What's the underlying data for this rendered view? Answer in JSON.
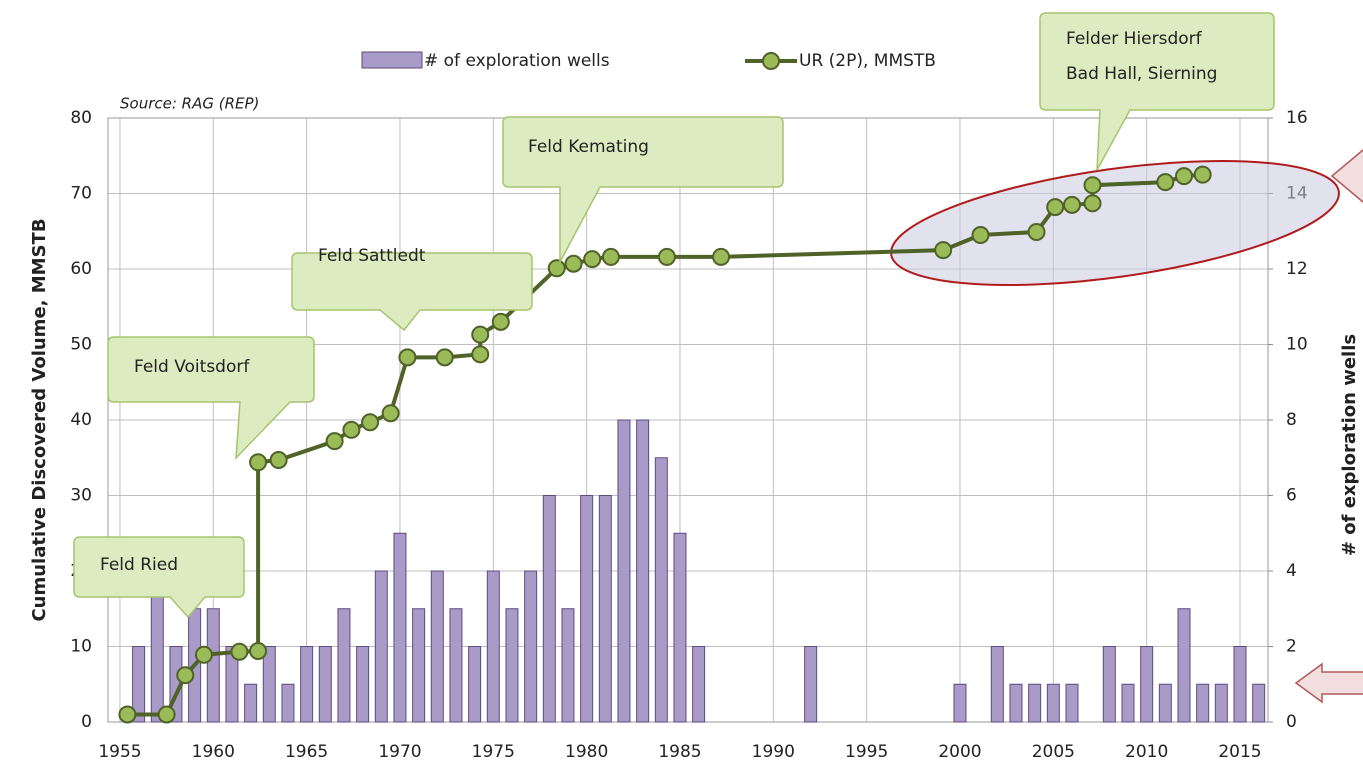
{
  "chart_data": {
    "type": "combo",
    "source": "Source: RAG (REP)",
    "ylabel": "Cumulative Discovered Volume, MMSTB",
    "y2label": "# of exploration wells",
    "xlim": [
      1954.36,
      2016.5
    ],
    "xticks": [
      1955,
      1960,
      1965,
      1970,
      1975,
      1980,
      1985,
      1990,
      1995,
      2000,
      2005,
      2010,
      2015
    ],
    "ylim": [
      0,
      80
    ],
    "yticks": [
      0,
      10,
      20,
      30,
      40,
      50,
      60,
      70,
      80
    ],
    "y2lim": [
      0,
      16
    ],
    "y2ticks": [
      0,
      2,
      4,
      6,
      8,
      10,
      12,
      14,
      16
    ],
    "grid": true,
    "legend": "top",
    "series": [
      {
        "name": "# of exploration wells",
        "type": "bar",
        "axis": "y2",
        "color": "#a99bc8",
        "x": [
          1956,
          1957,
          1958,
          1959,
          1960,
          1961,
          1962,
          1963,
          1964,
          1965,
          1966,
          1967,
          1968,
          1969,
          1970,
          1971,
          1972,
          1973,
          1974,
          1975,
          1976,
          1977,
          1978,
          1979,
          1980,
          1981,
          1982,
          1983,
          1984,
          1985,
          1986,
          1992,
          2000,
          2002,
          2003,
          2004,
          2005,
          2006,
          2008,
          2009,
          2010,
          2011,
          2012,
          2013,
          2014,
          2015,
          2016
        ],
        "values": [
          2,
          4,
          2,
          3,
          3,
          2,
          1,
          2,
          1,
          2,
          2,
          3,
          2,
          4,
          5,
          3,
          4,
          3,
          2,
          4,
          3,
          4,
          6,
          3,
          6,
          6,
          8,
          8,
          7,
          5,
          2,
          2,
          1,
          2,
          1,
          1,
          1,
          1,
          2,
          1,
          2,
          1,
          3,
          1,
          1,
          2,
          1
        ]
      },
      {
        "name": "UR (2P), MMSTB",
        "type": "line",
        "color": "#4f6228",
        "x": [
          1955.4,
          1957.5,
          1958.5,
          1959.5,
          1961.4,
          1962.4,
          1962.4,
          1963.5,
          1966.5,
          1967.4,
          1968.4,
          1969.5,
          1970.4,
          1972.4,
          1974.3,
          1974.3,
          1975.4,
          1978.4,
          1979.3,
          1980.3,
          1981.3,
          1984.3,
          1987.2,
          1999.1,
          2001.1,
          2004.1,
          2005.1,
          2006.0,
          2007.1,
          2007.1,
          2011.0,
          2012.0,
          2013.0
        ],
        "values": [
          1,
          1,
          6.2,
          8.9,
          9.3,
          9.4,
          34.4,
          34.7,
          37.2,
          38.7,
          39.7,
          40.9,
          48.3,
          48.3,
          48.7,
          51.3,
          53,
          60.1,
          60.7,
          61.3,
          61.6,
          61.6,
          61.6,
          62.5,
          64.5,
          64.9,
          68.2,
          68.5,
          68.7,
          71.1,
          71.5,
          72.3,
          72.5
        ]
      }
    ],
    "annotations": [
      "Feld Ried",
      "Feld Voitsdorf",
      "Feld Sattledt",
      "Feld Kemating",
      "Felder Hiersdorf",
      "Bad Hall, Sierning"
    ]
  }
}
